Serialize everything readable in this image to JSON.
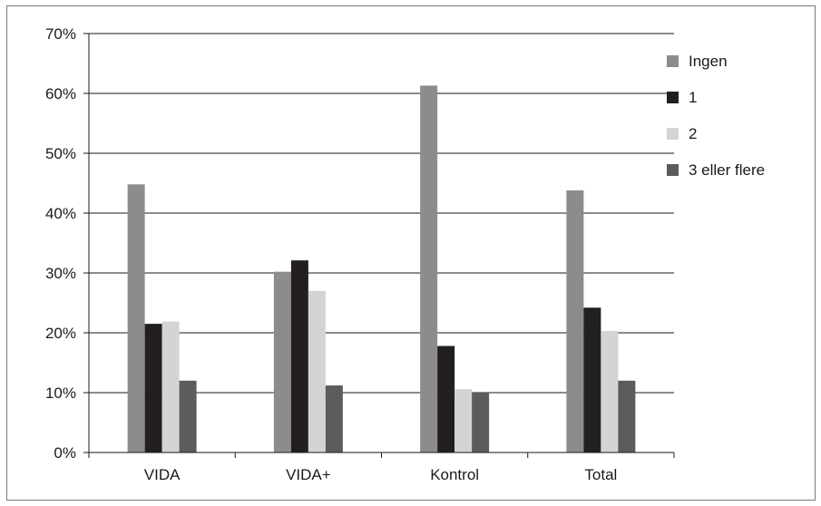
{
  "chart_data": {
    "type": "bar",
    "categories": [
      "VIDA",
      "VIDA+",
      "Kontrol",
      "Total"
    ],
    "series": [
      {
        "name": "Ingen",
        "values": [
          44.8,
          30.2,
          61.3,
          43.8
        ],
        "color": "#8c8c8c"
      },
      {
        "name": "1",
        "values": [
          21.5,
          32.1,
          17.8,
          24.2
        ],
        "color": "#231f20"
      },
      {
        "name": "2",
        "values": [
          21.9,
          27.0,
          10.6,
          20.3
        ],
        "color": "#d4d4d4"
      },
      {
        "name": "3 eller flere",
        "values": [
          12.0,
          11.2,
          10.1,
          12.0
        ],
        "color": "#5c5c5c"
      }
    ],
    "ylim": [
      0,
      70
    ],
    "yticks": [
      "0%",
      "10%",
      "20%",
      "30%",
      "40%",
      "50%",
      "60%",
      "70%"
    ],
    "grid": true,
    "legend_position": "right"
  }
}
